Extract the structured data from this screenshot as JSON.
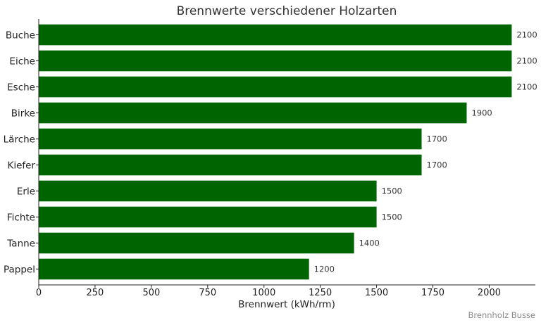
{
  "chart_data": {
    "type": "bar",
    "orientation": "horizontal",
    "title": "Brennwerte verschiedener Holzarten",
    "xlabel": "Brennwert (kWh/rm)",
    "ylabel": "",
    "categories": [
      "Buche",
      "Eiche",
      "Esche",
      "Birke",
      "Lärche",
      "Kiefer",
      "Erle",
      "Fichte",
      "Tanne",
      "Pappel"
    ],
    "values": [
      2100,
      2100,
      2100,
      1900,
      1700,
      1700,
      1500,
      1500,
      1400,
      1200
    ],
    "data_labels": [
      "2100",
      "2100",
      "2100",
      "1900",
      "1700",
      "1700",
      "1500",
      "1500",
      "1400",
      "1200"
    ],
    "xlim": [
      0,
      2205
    ],
    "xticks": [
      0,
      250,
      500,
      750,
      1000,
      1250,
      1500,
      1750,
      2000
    ],
    "xtick_labels": [
      "0",
      "250",
      "500",
      "750",
      "1000",
      "1250",
      "1500",
      "1750",
      "2000"
    ],
    "bar_color": "#006400",
    "grid": false,
    "legend": "none"
  },
  "watermark": "Brennholz Busse"
}
